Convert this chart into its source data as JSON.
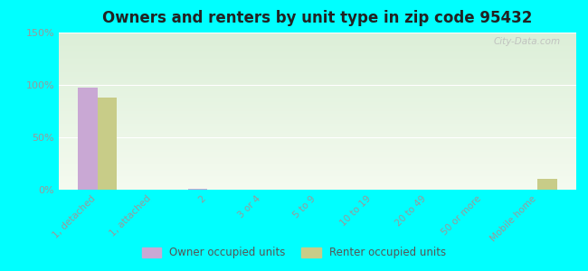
{
  "title": "Owners and renters by unit type in zip code 95432",
  "categories": [
    "1, detached",
    "1, attached",
    "2",
    "3 or 4",
    "5 to 9",
    "10 to 19",
    "20 to 49",
    "50 or more",
    "Mobile home"
  ],
  "owner_values": [
    97,
    0,
    1,
    0,
    0,
    0,
    0,
    0,
    0
  ],
  "renter_values": [
    88,
    0,
    0,
    0,
    0,
    0,
    0,
    0,
    10
  ],
  "owner_color": "#c9a8d4",
  "renter_color": "#c8cc88",
  "background_color": "#00ffff",
  "ylim": [
    0,
    150
  ],
  "yticks": [
    0,
    50,
    100,
    150
  ],
  "ytick_labels": [
    "0%",
    "50%",
    "100%",
    "150%"
  ],
  "watermark": "City-Data.com",
  "legend_owner": "Owner occupied units",
  "legend_renter": "Renter occupied units",
  "grad_top": "#dcefd8",
  "grad_bottom": "#f5fbf0"
}
